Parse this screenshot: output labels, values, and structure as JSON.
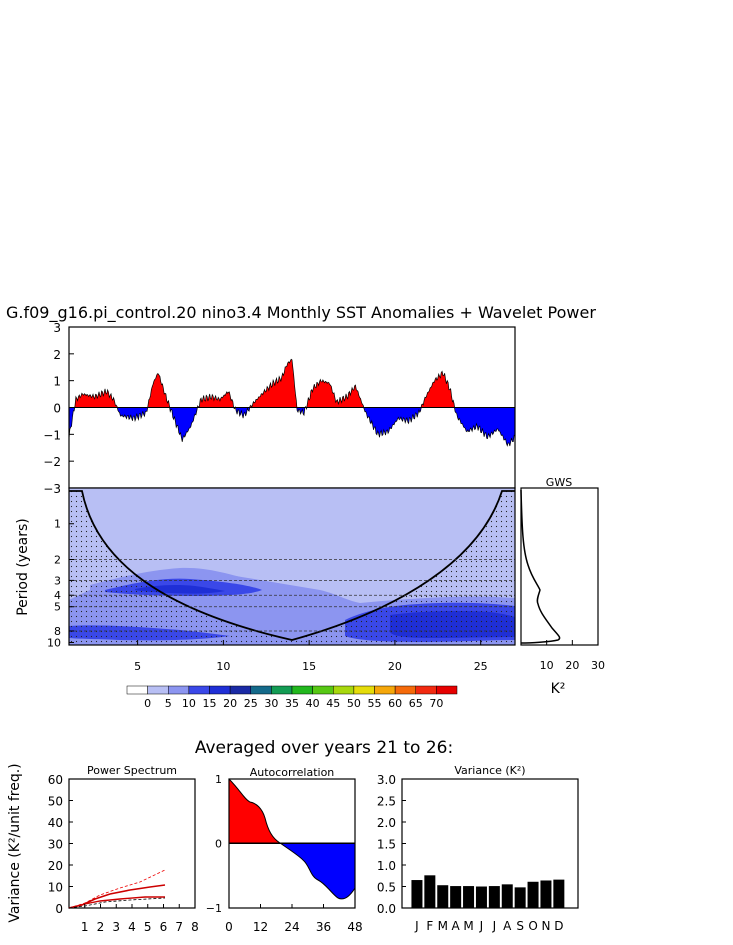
{
  "title": "G.f09_g16.pi_control.20 nino3.4 Monthly SST Anomalies + Wavelet Power",
  "timeseries": {
    "y_ticks": [
      "3",
      "2",
      "1",
      "0",
      "−1",
      "−2",
      "−3"
    ],
    "ylim": [
      -3,
      3
    ],
    "pos_color": "#ff0000",
    "neg_color": "#0000ff",
    "anom_knots": [
      [
        1,
        -1.1
      ],
      [
        1.4,
        0.3
      ],
      [
        1.8,
        0.5
      ],
      [
        2.5,
        0.4
      ],
      [
        3.2,
        0.6
      ],
      [
        3.6,
        0.3
      ],
      [
        4,
        -0.3
      ],
      [
        4.8,
        -0.4
      ],
      [
        5.5,
        -0.2
      ],
      [
        5.9,
        0.9
      ],
      [
        6.2,
        1.3
      ],
      [
        6.6,
        0.5
      ],
      [
        7,
        -0.2
      ],
      [
        7.6,
        -1.2
      ],
      [
        8.1,
        -0.7
      ],
      [
        8.7,
        0.3
      ],
      [
        9.3,
        0.4
      ],
      [
        9.8,
        0.3
      ],
      [
        10.3,
        0.6
      ],
      [
        10.7,
        -0.1
      ],
      [
        11.2,
        -0.3
      ],
      [
        11.8,
        0.2
      ],
      [
        12.4,
        0.6
      ],
      [
        12.9,
        0.9
      ],
      [
        13.4,
        1.1
      ],
      [
        13.7,
        1.6
      ],
      [
        14,
        1.8
      ],
      [
        14.3,
        -0.1
      ],
      [
        14.7,
        -0.2
      ],
      [
        15.2,
        0.7
      ],
      [
        15.7,
        1.0
      ],
      [
        16.2,
        0.9
      ],
      [
        16.6,
        0.2
      ],
      [
        17.2,
        0.4
      ],
      [
        17.7,
        0.8
      ],
      [
        18.3,
        -0.2
      ],
      [
        19,
        -1.0
      ],
      [
        19.6,
        -0.9
      ],
      [
        20.2,
        -0.4
      ],
      [
        20.8,
        -0.5
      ],
      [
        21.4,
        -0.2
      ],
      [
        21.8,
        0.4
      ],
      [
        22.3,
        1.0
      ],
      [
        22.8,
        1.3
      ],
      [
        23.2,
        0.7
      ],
      [
        23.6,
        -0.3
      ],
      [
        24.2,
        -0.9
      ],
      [
        24.8,
        -0.7
      ],
      [
        25.4,
        -1.1
      ],
      [
        26,
        -0.8
      ],
      [
        26.6,
        -1.4
      ],
      [
        27,
        -1.1
      ]
    ]
  },
  "wavelet": {
    "ylabel": "Period (years)",
    "y_ticks": [
      "1",
      "2",
      "3",
      "4",
      "5",
      "8",
      "10"
    ],
    "x_ticks": [
      "5",
      "10",
      "15",
      "20",
      "25"
    ],
    "xlim": [
      1,
      27
    ],
    "coi_min_year": 14,
    "dashed_periods": [
      2,
      3,
      4,
      5,
      8
    ],
    "fill_color": "#b8bff4"
  },
  "gws": {
    "title": "GWS",
    "x_ticks": [
      "10",
      "20",
      "30"
    ],
    "xlabel": "K²"
  },
  "colorbar": {
    "labels": [
      "0",
      "5",
      "10",
      "15",
      "20",
      "25",
      "30",
      "35",
      "40",
      "45",
      "50",
      "55",
      "60",
      "65",
      "70"
    ],
    "colors": [
      "#ffffff",
      "#b8bff4",
      "#8c95f0",
      "#3a48e8",
      "#1f2fd6",
      "#1a2aa5",
      "#146a8a",
      "#139c54",
      "#22b81e",
      "#57c814",
      "#a8d80e",
      "#e5dc0a",
      "#f5a70a",
      "#f56a0a",
      "#f22a10",
      "#e60000"
    ]
  },
  "subtitle": "Averaged over years 21 to 26:",
  "power_spectrum": {
    "title": "Power Spectrum",
    "ylabel": "Variance (K²/unit freq.)",
    "y_ticks": [
      "60",
      "50",
      "40",
      "30",
      "20",
      "10",
      "0"
    ],
    "x_ticks": [
      "1",
      "2",
      "3",
      "4",
      "5",
      "6",
      "7",
      "8"
    ]
  },
  "autocorrelation": {
    "title": "Autocorrelation",
    "y_ticks": [
      "1",
      "0",
      "−1"
    ],
    "x_ticks": [
      "0",
      "12",
      "24",
      "36",
      "48"
    ],
    "pos_color": "#ff0000",
    "neg_color": "#0000ff"
  },
  "variance": {
    "title": "Variance (K²)",
    "y_ticks": [
      "3.0",
      "2.5",
      "2.0",
      "1.5",
      "1.0",
      "0.5",
      "0.0"
    ],
    "ylim": [
      0,
      3
    ],
    "months": [
      "J",
      "F",
      "M",
      "A",
      "M",
      "J",
      "J",
      "A",
      "S",
      "O",
      "N",
      "D"
    ],
    "values": [
      0.65,
      0.76,
      0.53,
      0.51,
      0.51,
      0.5,
      0.51,
      0.55,
      0.48,
      0.61,
      0.64,
      0.66
    ]
  },
  "chart_data": [
    {
      "type": "area",
      "title": "G.f09_g16.pi_control.20 nino3.4 Monthly SST Anomalies + Wavelet Power",
      "ylim": [
        -3,
        3
      ],
      "x": [
        1,
        1.4,
        1.8,
        2.5,
        3.2,
        3.6,
        4,
        4.8,
        5.5,
        5.9,
        6.2,
        6.6,
        7,
        7.6,
        8.1,
        8.7,
        9.3,
        9.8,
        10.3,
        10.7,
        11.2,
        11.8,
        12.4,
        12.9,
        13.4,
        13.7,
        14,
        14.3,
        14.7,
        15.2,
        15.7,
        16.2,
        16.6,
        17.2,
        17.7,
        18.3,
        19,
        19.6,
        20.2,
        20.8,
        21.4,
        21.8,
        22.3,
        22.8,
        23.2,
        23.6,
        24.2,
        24.8,
        25.4,
        26,
        26.6,
        27
      ],
      "y": [
        -1.1,
        0.3,
        0.5,
        0.4,
        0.6,
        0.3,
        -0.3,
        -0.4,
        -0.2,
        0.9,
        1.3,
        0.5,
        -0.2,
        -1.2,
        -0.7,
        0.3,
        0.4,
        0.3,
        0.6,
        -0.1,
        -0.3,
        0.2,
        0.6,
        0.9,
        1.1,
        1.6,
        1.8,
        -0.1,
        -0.2,
        0.7,
        1.0,
        0.9,
        0.2,
        0.4,
        0.8,
        -0.2,
        -1.0,
        -0.9,
        -0.4,
        -0.5,
        -0.2,
        0.4,
        1.0,
        1.3,
        0.7,
        -0.3,
        -0.9,
        -0.7,
        -1.1,
        -0.8,
        -1.4,
        -1.1
      ]
    },
    {
      "type": "heatmap",
      "ylabel": "Period (years)",
      "xlim": [
        1,
        27
      ]
    },
    {
      "type": "bar",
      "title": "Variance (K²)",
      "categories": [
        "J",
        "F",
        "M",
        "A",
        "M",
        "J",
        "J",
        "A",
        "S",
        "O",
        "N",
        "D"
      ],
      "values": [
        0.65,
        0.76,
        0.53,
        0.51,
        0.51,
        0.5,
        0.51,
        0.55,
        0.48,
        0.61,
        0.64,
        0.66
      ],
      "ylim": [
        0,
        3
      ]
    }
  ]
}
